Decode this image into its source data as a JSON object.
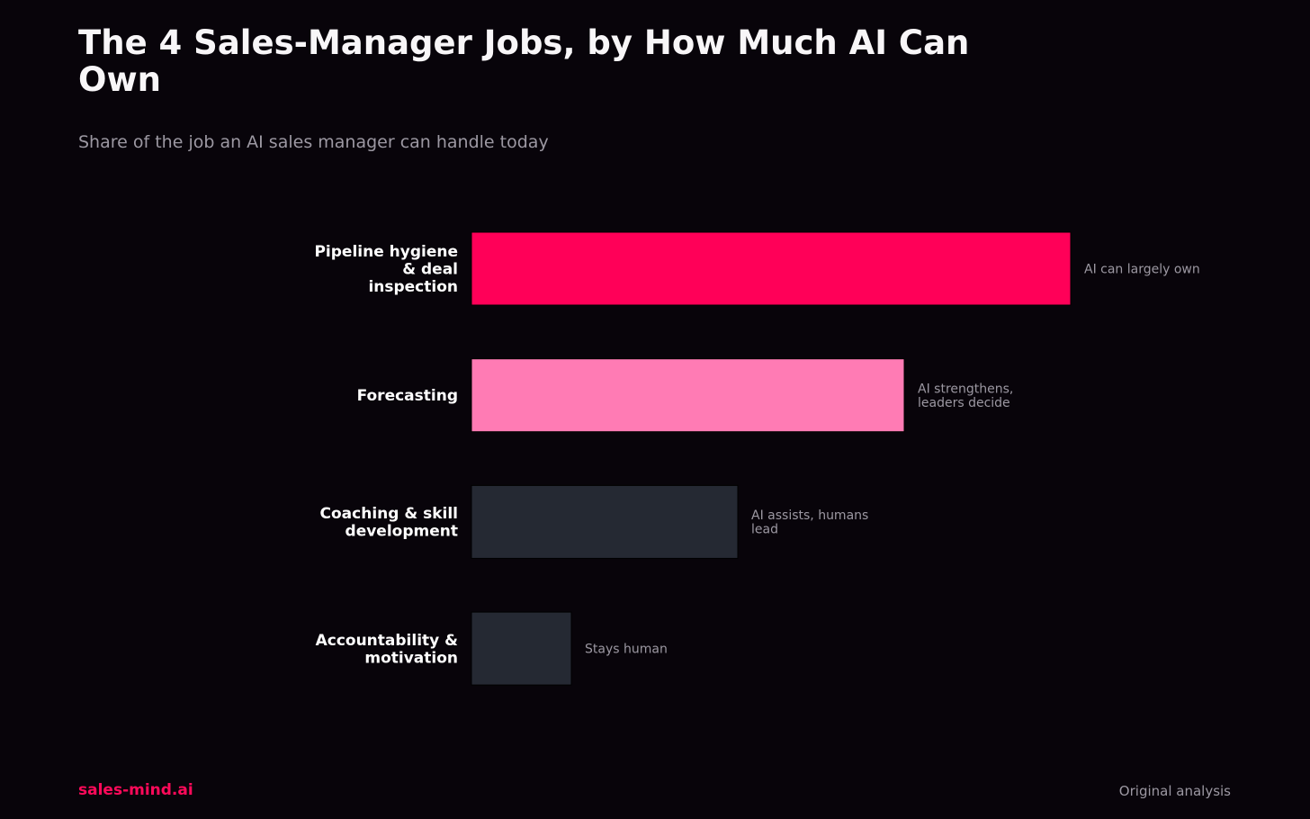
{
  "header": {
    "title": "The 4 Sales-Manager Jobs, by How Much AI Can Own",
    "subtitle": "Share of the job an AI sales manager can handle today"
  },
  "footer": {
    "brand": "sales-mind.ai",
    "source": "Original analysis"
  },
  "chart_data": {
    "type": "bar",
    "orientation": "horizontal",
    "title": "The 4 Sales-Manager Jobs, by How Much AI Can Own",
    "subtitle": "Share of the job an AI sales manager can handle today",
    "xlabel": "",
    "ylabel": "",
    "xlim": [
      0,
      100
    ],
    "grid": false,
    "categories": [
      [
        "Pipeline hygiene",
        "& deal",
        "inspection"
      ],
      [
        "Forecasting"
      ],
      [
        "Coaching & skill",
        "development"
      ],
      [
        "Accountability &",
        "motivation"
      ]
    ],
    "values": [
      90,
      65,
      40,
      15
    ],
    "annotations": [
      [
        "AI can largely own"
      ],
      [
        "AI strengthens,",
        "leaders decide"
      ],
      [
        "AI assists, humans",
        "lead"
      ],
      [
        "Stays human"
      ]
    ],
    "colors": [
      "#ff0058",
      "#ff7bb4",
      "#252933",
      "#252933"
    ],
    "bar_stroke": "#000000"
  }
}
